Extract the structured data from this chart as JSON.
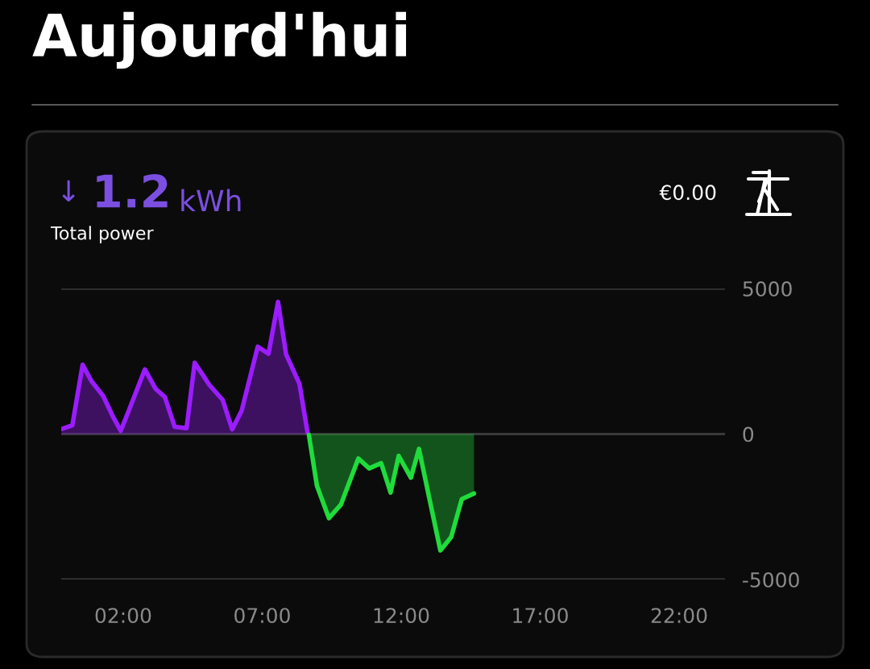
{
  "chart_data": {
    "type": "area",
    "title": "Aujourd'hui",
    "annotations": [
      "↓",
      "1.2",
      "kWh",
      "Total power",
      "€0.00"
    ],
    "series": [
      {
        "color": "#9b1cff",
        "x": [
          -0.21,
          0.17,
          0.54,
          0.85,
          1.28,
          1.62,
          1.91,
          2.2,
          2.78,
          3.17,
          3.5,
          3.85,
          4.28,
          4.57,
          5.1,
          5.58,
          5.92,
          6.26,
          6.84,
          7.23,
          7.57,
          7.86,
          8.34,
          8.63
        ],
        "values": [
          175,
          300,
          2380,
          1830,
          1310,
          620,
          110,
          800,
          2220,
          1550,
          1270,
          250,
          200,
          2450,
          1690,
          1170,
          160,
          800,
          3000,
          2760,
          4540,
          2740,
          1730,
          60
        ]
      },
      {
        "color": "#1fdc3c",
        "x": [
          8.68,
          8.97,
          9.4,
          9.83,
          10.46,
          10.85,
          11.28,
          11.62,
          11.91,
          12.35,
          12.64,
          13.02,
          13.41,
          13.8,
          14.18,
          14.62
        ],
        "values": [
          -30,
          -1780,
          -2890,
          -2430,
          -840,
          -1180,
          -1000,
          -2010,
          -750,
          -1500,
          -510,
          -2240,
          -4000,
          -3540,
          -2240,
          -2040
        ]
      }
    ],
    "xlim": [
      -0.23,
      23.65
    ],
    "xticks": [
      {
        "value": 2,
        "label": "02:00"
      },
      {
        "value": 7,
        "label": "07:00"
      },
      {
        "value": 12,
        "label": "12:00"
      },
      {
        "value": 17,
        "label": "17:00"
      },
      {
        "value": 22,
        "label": "22:00"
      }
    ],
    "ylim": [
      -5000,
      5000
    ],
    "yticks": [
      {
        "value": -5000,
        "label": "-5000"
      },
      0,
      5000
    ],
    "grid": "y"
  }
}
